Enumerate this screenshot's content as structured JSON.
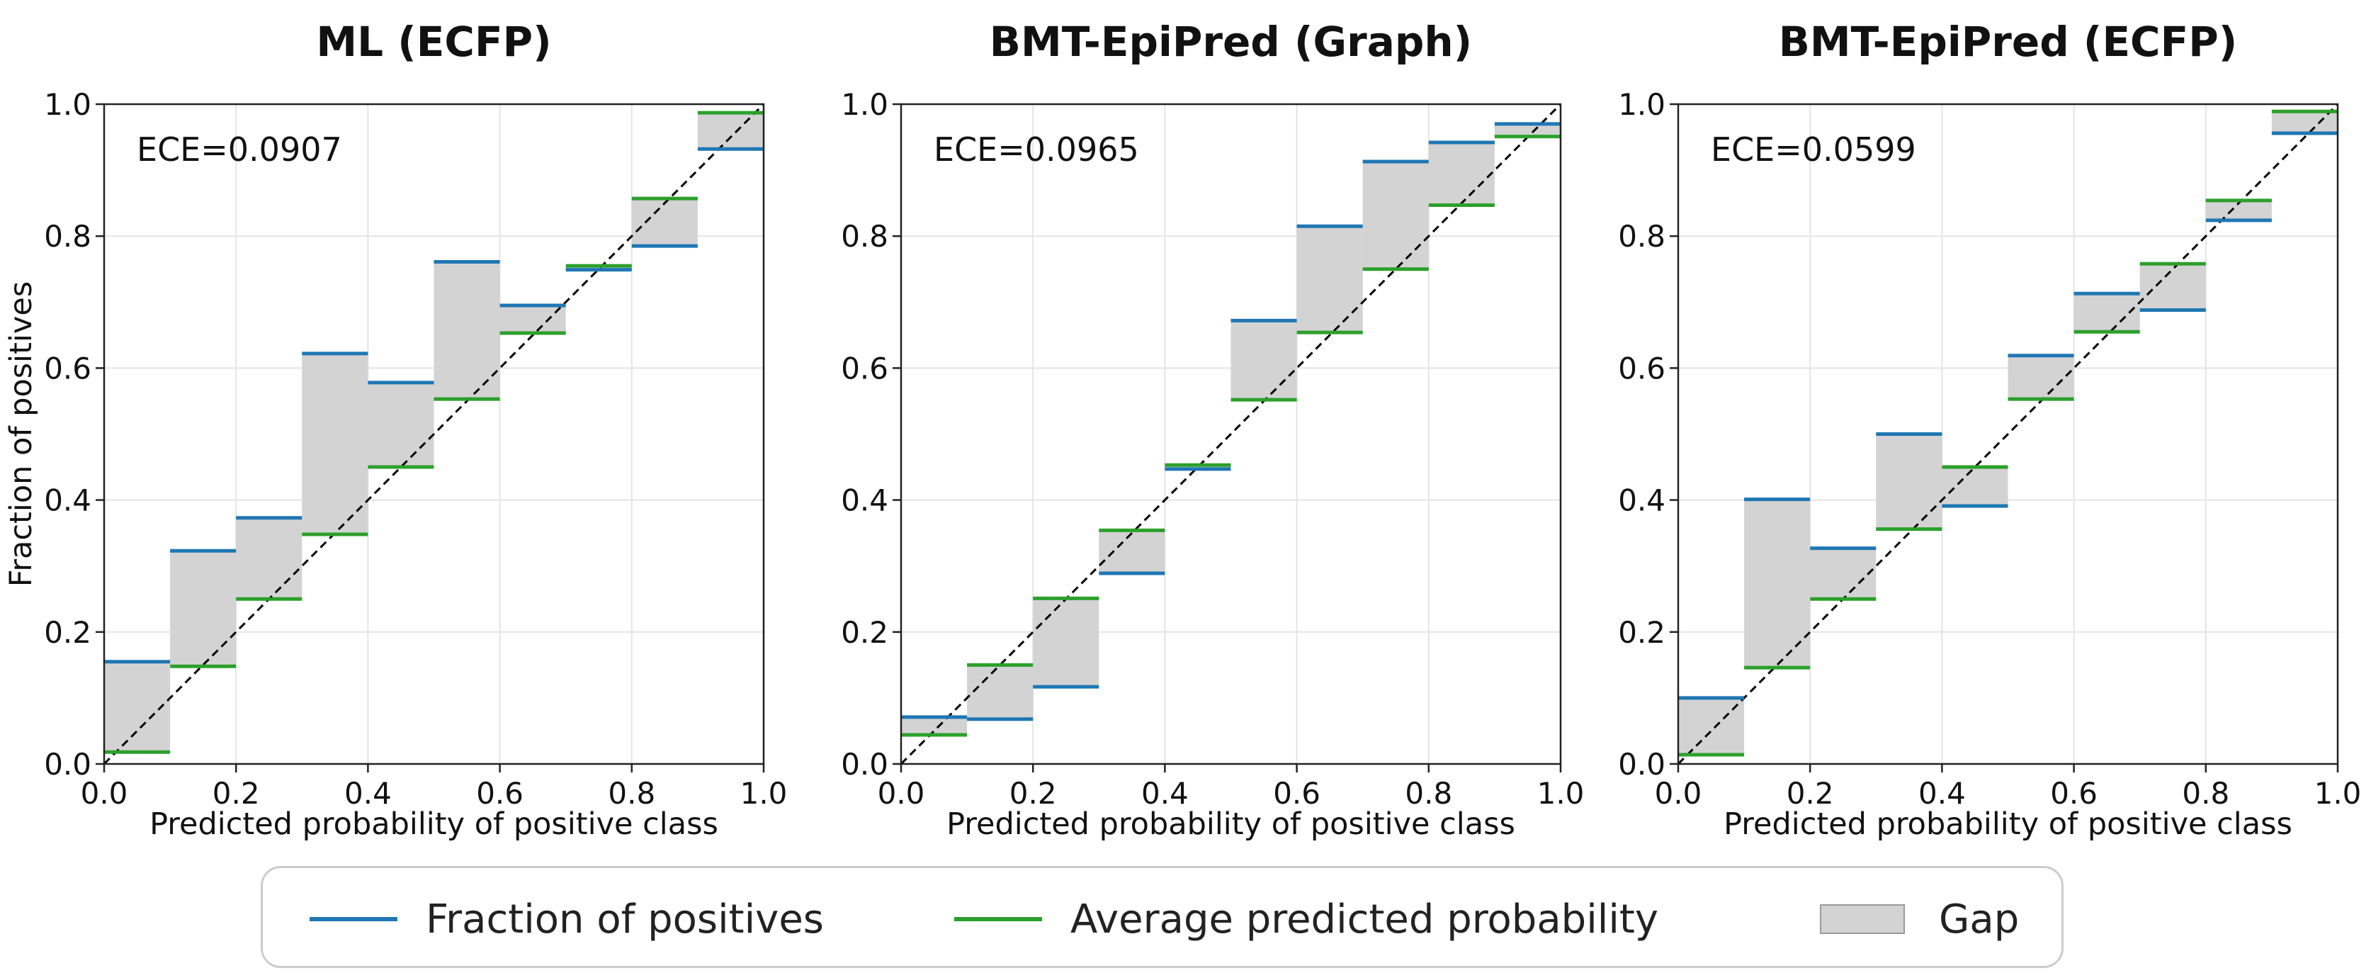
{
  "colors": {
    "fraction": "#1f77b4",
    "average": "#2ca02c",
    "gap_fill": "#d3d3d3",
    "diagonal": "#000000"
  },
  "legend": {
    "fraction_label": "Fraction of positives",
    "average_label": "Average predicted probability",
    "gap_label": "Gap"
  },
  "chart_data": [
    {
      "type": "bar",
      "title": "ML (ECFP)",
      "annotation": "ECE=0.0907",
      "xlabel": "Predicted probability of positive class",
      "ylabel": "Fraction of positives",
      "xlim": [
        0,
        1
      ],
      "ylim": [
        0,
        1
      ],
      "xticks": [
        "0.0",
        "0.2",
        "0.4",
        "0.6",
        "0.8",
        "1.0"
      ],
      "yticks": [
        "0.0",
        "0.2",
        "0.4",
        "0.6",
        "0.8",
        "1.0"
      ],
      "grid": true,
      "bin_edges": [
        0.0,
        0.1,
        0.2,
        0.3,
        0.4,
        0.5,
        0.6,
        0.7,
        0.8,
        0.9,
        1.0
      ],
      "series": [
        {
          "key": "fraction",
          "values": [
            0.155,
            0.323,
            0.373,
            0.622,
            0.578,
            0.761,
            0.695,
            0.749,
            0.785,
            0.932
          ]
        },
        {
          "key": "average",
          "values": [
            0.018,
            0.148,
            0.25,
            0.348,
            0.45,
            0.553,
            0.653,
            0.755,
            0.857,
            0.987
          ]
        }
      ]
    },
    {
      "type": "bar",
      "title": "BMT-EpiPred (Graph)",
      "annotation": "ECE=0.0965",
      "xlabel": "Predicted probability of positive class",
      "ylabel": "",
      "xlim": [
        0,
        1
      ],
      "ylim": [
        0,
        1
      ],
      "xticks": [
        "0.0",
        "0.2",
        "0.4",
        "0.6",
        "0.8",
        "1.0"
      ],
      "yticks": [
        "0.0",
        "0.2",
        "0.4",
        "0.6",
        "0.8",
        "1.0"
      ],
      "grid": true,
      "bin_edges": [
        0.0,
        0.1,
        0.2,
        0.3,
        0.4,
        0.5,
        0.6,
        0.7,
        0.8,
        0.9,
        1.0
      ],
      "series": [
        {
          "key": "fraction",
          "values": [
            0.071,
            0.068,
            0.117,
            0.289,
            0.447,
            0.672,
            0.815,
            0.913,
            0.942,
            0.97
          ]
        },
        {
          "key": "average",
          "values": [
            0.044,
            0.15,
            0.251,
            0.354,
            0.453,
            0.552,
            0.654,
            0.75,
            0.847,
            0.951
          ]
        }
      ]
    },
    {
      "type": "bar",
      "title": "BMT-EpiPred (ECFP)",
      "annotation": "ECE=0.0599",
      "xlabel": "Predicted probability of positive class",
      "ylabel": "",
      "xlim": [
        0,
        1
      ],
      "ylim": [
        0,
        1
      ],
      "xticks": [
        "0.0",
        "0.2",
        "0.4",
        "0.6",
        "0.8",
        "1.0"
      ],
      "yticks": [
        "0.0",
        "0.2",
        "0.4",
        "0.6",
        "0.8",
        "1.0"
      ],
      "grid": true,
      "bin_edges": [
        0.0,
        0.1,
        0.2,
        0.3,
        0.4,
        0.5,
        0.6,
        0.7,
        0.8,
        0.9,
        1.0
      ],
      "series": [
        {
          "key": "fraction",
          "values": [
            0.1,
            0.401,
            0.327,
            0.5,
            0.391,
            0.619,
            0.713,
            0.688,
            0.824,
            0.956
          ]
        },
        {
          "key": "average",
          "values": [
            0.014,
            0.146,
            0.25,
            0.356,
            0.45,
            0.553,
            0.655,
            0.758,
            0.854,
            0.989
          ]
        }
      ]
    }
  ]
}
